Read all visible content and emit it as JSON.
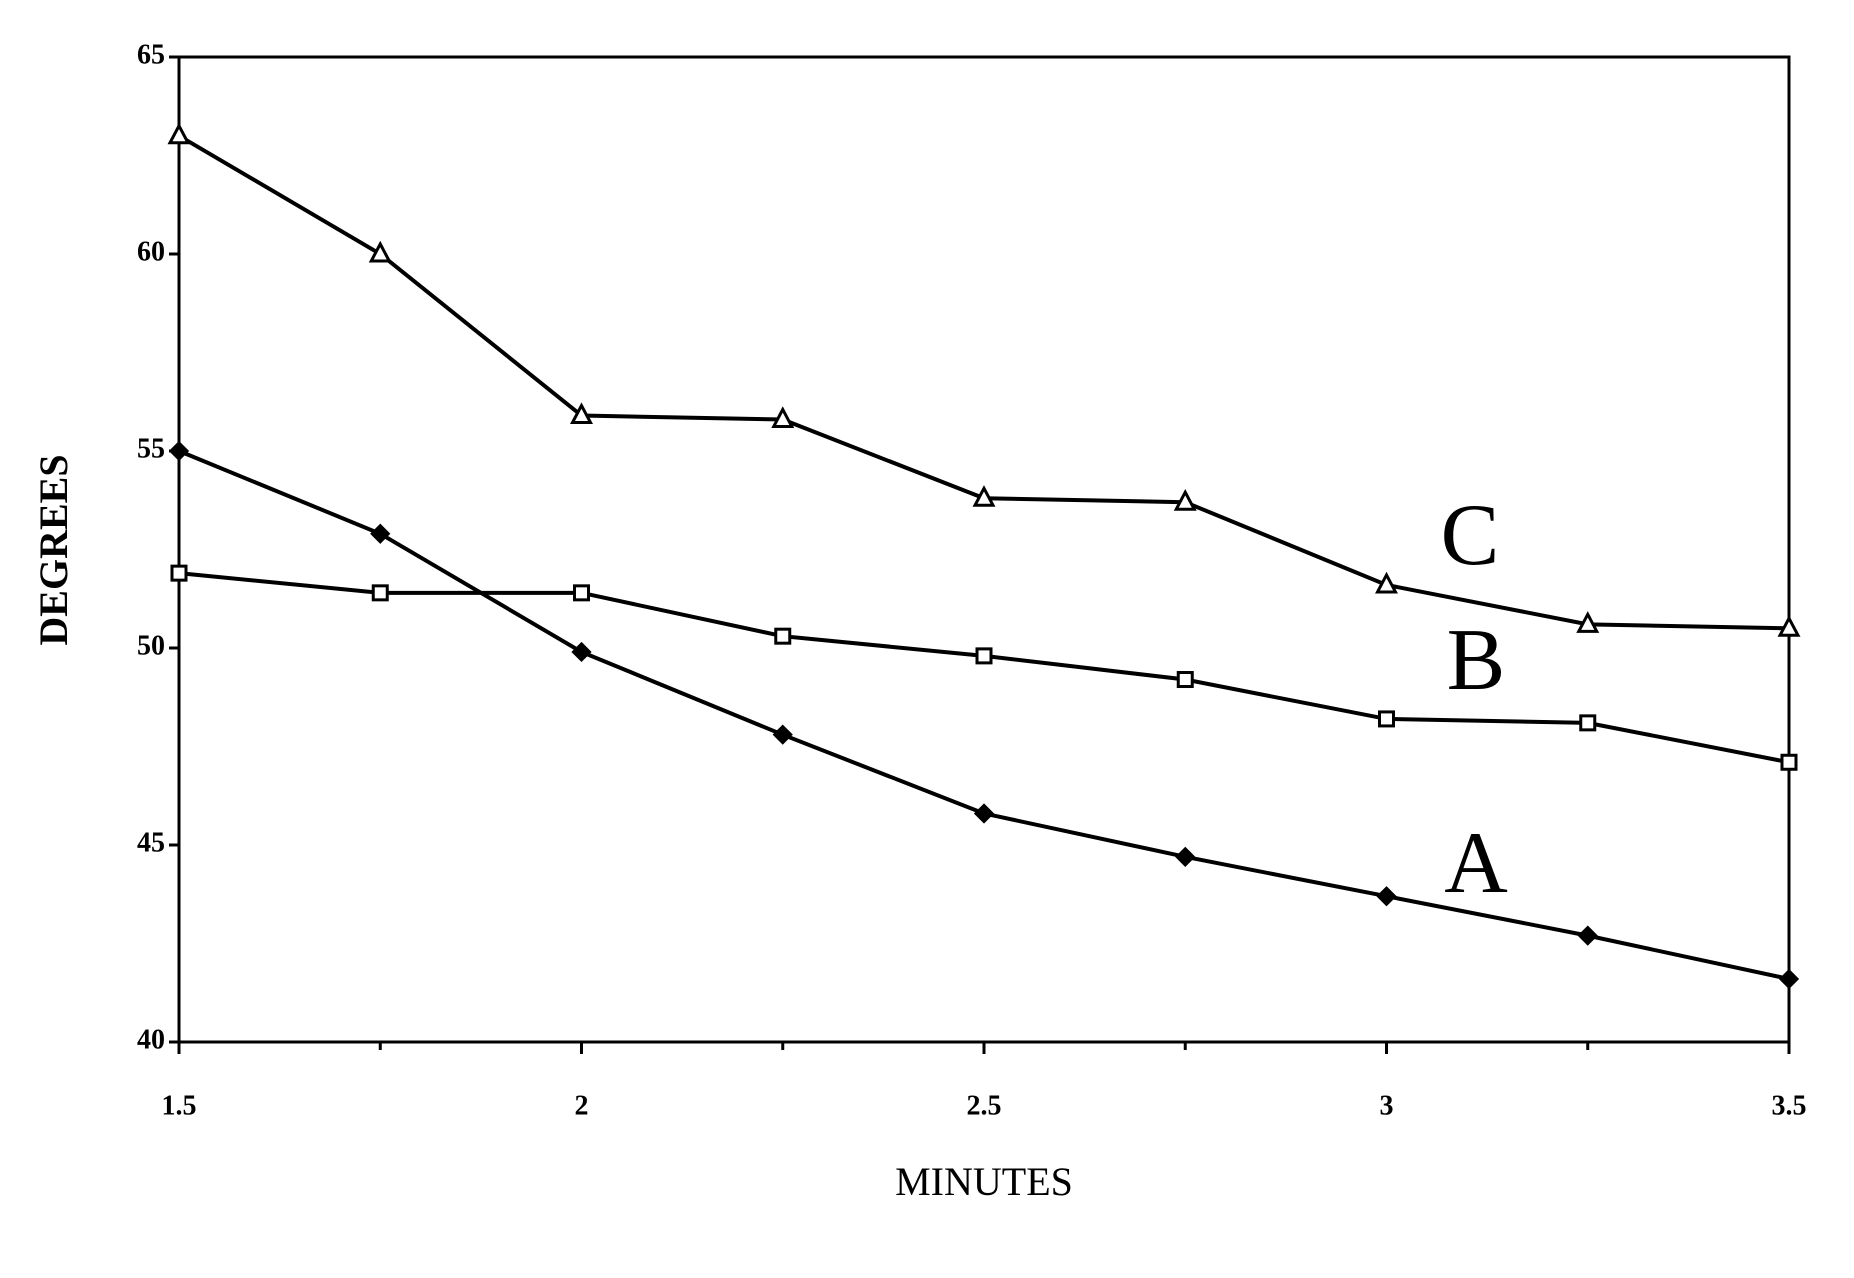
{
  "chart_data": {
    "type": "line",
    "x_label": "MINUTES",
    "y_label": "DEGREES",
    "x": [
      1.5,
      1.75,
      2,
      2.25,
      2.5,
      2.75,
      3,
      3.25,
      3.5
    ],
    "series": [
      {
        "name": "A",
        "color": "#000000",
        "marker": "diamond",
        "values": [
          55.0,
          52.9,
          49.9,
          47.8,
          45.8,
          44.7,
          43.7,
          42.7,
          41.6
        ]
      },
      {
        "name": "B",
        "color": "#000000",
        "marker": "square",
        "values": [
          51.9,
          51.4,
          51.4,
          50.3,
          49.8,
          49.2,
          48.2,
          48.1,
          47.1
        ]
      },
      {
        "name": "C",
        "color": "#000000",
        "marker": "triangle",
        "values": [
          63.0,
          60.0,
          55.9,
          55.8,
          53.8,
          53.7,
          51.6,
          50.6,
          50.5
        ]
      }
    ],
    "xlim": [
      1.5,
      3.5
    ],
    "xticks": [
      1.5,
      2,
      2.5,
      3,
      3.5
    ],
    "ylim": [
      40,
      65
    ],
    "yticks": [
      40,
      45,
      50,
      55,
      60,
      65
    ],
    "grid": false
  }
}
